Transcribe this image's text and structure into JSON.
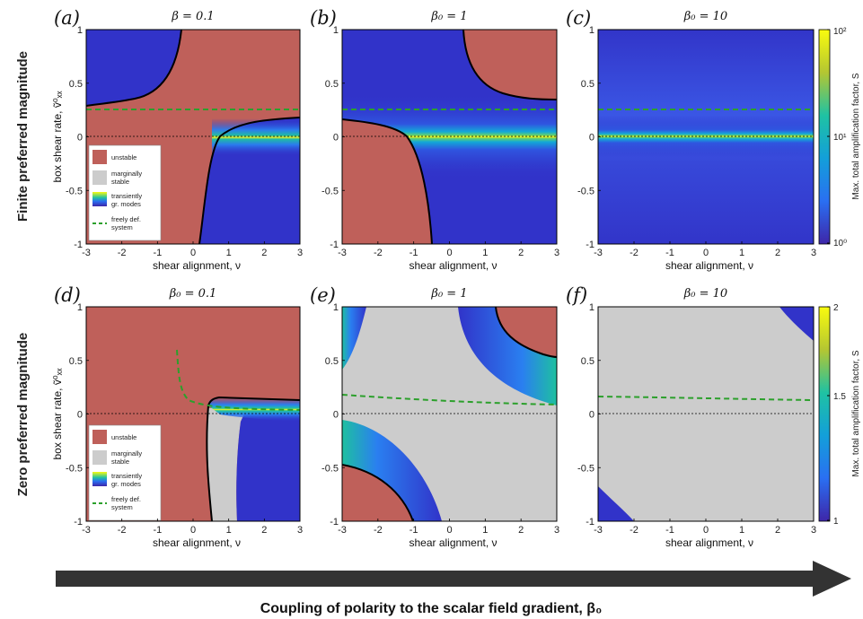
{
  "colors": {
    "unstable": "#bf605a",
    "marginal": "#cccccc",
    "low": "#3133c9",
    "high": "#f9f81c",
    "freely": "#2ca02c",
    "boundary": "#000000",
    "arrow": "#333333"
  },
  "figure": {
    "row_labels": [
      "Finite preferred magnitude",
      "Zero preferred magnitude"
    ],
    "bottom_arrow_label": "Coupling of polarity to the scalar field gradient, β₀",
    "legend": {
      "unstable": "unstable",
      "marginal_1": "marginally",
      "marginal_2": "stable",
      "transient_1": "transiently",
      "transient_2": "gr. modes",
      "freely_1": "freely def.",
      "freely_2": "system"
    },
    "colorbar_top": {
      "label": "Max. total amplification factor, S",
      "scale": "log",
      "ticks": [
        "10⁰",
        "10¹",
        "10²"
      ]
    },
    "colorbar_bottom": {
      "label": "Max. total amplification factor, S",
      "scale": "linear",
      "ticks": [
        "1",
        "1.5",
        "2"
      ]
    }
  },
  "chart_data": [
    {
      "type": "heatmap",
      "panel": "(a)",
      "title": "β = 0.1",
      "xlabel": "shear alignment, ν",
      "ylabel": "box shear rate, ṽ⁰ₓₓ",
      "xlim": [
        -3,
        3
      ],
      "ylim": [
        -1,
        1
      ],
      "xticks": [
        "-3",
        "-2",
        "-1",
        "0",
        "1",
        "2",
        "3"
      ],
      "yticks": [
        "1",
        "0.5",
        "0",
        "-0.5",
        "-1"
      ],
      "regions": [
        "unstable",
        "transiently growing modes"
      ],
      "freely_deformable_line_y": 0.25,
      "grid": false
    },
    {
      "type": "heatmap",
      "panel": "(b)",
      "title": "β₀ = 1",
      "xlabel": "shear alignment, ν",
      "ylabel": "",
      "xlim": [
        -3,
        3
      ],
      "ylim": [
        -1,
        1
      ],
      "xticks": [
        "-3",
        "-2",
        "-1",
        "0",
        "1",
        "2",
        "3"
      ],
      "yticks": [
        "1",
        "0.5",
        "0",
        "-0.5",
        "-1"
      ],
      "regions": [
        "unstable",
        "transiently growing modes"
      ],
      "freely_deformable_line_y": 0.25,
      "grid": false
    },
    {
      "type": "heatmap",
      "panel": "(c)",
      "title": "β₀ = 10",
      "xlabel": "shear alignment, ν",
      "ylabel": "",
      "xlim": [
        -3,
        3
      ],
      "ylim": [
        -1,
        1
      ],
      "xticks": [
        "-3",
        "-2",
        "-1",
        "0",
        "1",
        "2",
        "3"
      ],
      "yticks": [
        "1",
        "0.5",
        "0",
        "-0.5",
        "-1"
      ],
      "regions": [
        "transiently growing modes"
      ],
      "freely_deformable_line_y": 0.25,
      "grid": false
    },
    {
      "type": "heatmap",
      "panel": "(d)",
      "title": "β₀ = 0.1",
      "xlabel": "shear alignment, ν",
      "ylabel": "box shear rate, ṽ⁰ₓₓ",
      "xlim": [
        -3,
        3
      ],
      "ylim": [
        -1,
        1
      ],
      "xticks": [
        "-3",
        "-2",
        "-1",
        "0",
        "1",
        "2",
        "3"
      ],
      "yticks": [
        "1",
        "0.5",
        "0",
        "-0.5",
        "-1"
      ],
      "regions": [
        "unstable",
        "marginally stable",
        "transiently growing modes"
      ],
      "grid": false
    },
    {
      "type": "heatmap",
      "panel": "(e)",
      "title": "β₀ = 1",
      "xlabel": "shear alignment, ν",
      "ylabel": "",
      "xlim": [
        -3,
        3
      ],
      "ylim": [
        -1,
        1
      ],
      "xticks": [
        "-3",
        "-2",
        "-1",
        "0",
        "1",
        "2",
        "3"
      ],
      "yticks": [
        "1",
        "0.5",
        "0",
        "-0.5",
        "-1"
      ],
      "regions": [
        "unstable",
        "marginally stable",
        "transiently growing modes"
      ],
      "grid": false
    },
    {
      "type": "heatmap",
      "panel": "(f)",
      "title": "β₀ = 10",
      "xlabel": "shear alignment, ν",
      "ylabel": "",
      "xlim": [
        -3,
        3
      ],
      "ylim": [
        -1,
        1
      ],
      "xticks": [
        "-3",
        "-2",
        "-1",
        "0",
        "1",
        "2",
        "3"
      ],
      "yticks": [
        "1",
        "0.5",
        "0",
        "-0.5",
        "-1"
      ],
      "regions": [
        "marginally stable",
        "transiently growing modes"
      ],
      "freely_deformable_line_y": 0.12,
      "grid": false
    }
  ]
}
